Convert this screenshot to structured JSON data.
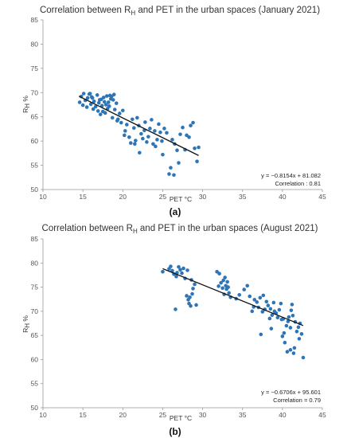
{
  "chart_data": [
    {
      "type": "scatter",
      "title_pre": "Correlation between R",
      "title_sub": "H",
      "title_post": " and PET in the urban spaces (January 2021)",
      "xlabel": "PET °C",
      "ylabel_main": "R",
      "ylabel_sub": "H",
      "ylabel_unit": " %",
      "xlim": [
        10,
        45
      ],
      "ylim": [
        50,
        85
      ],
      "xticks": [
        "10",
        "15",
        "20",
        "25",
        "30",
        "35",
        "40",
        "45"
      ],
      "yticks": [
        "50",
        "55",
        "60",
        "65",
        "70",
        "75",
        "80",
        "85"
      ],
      "equation": "y = −0.8154x + 81.082",
      "correlation": "Correlation : 0.81",
      "trend": {
        "slope": -0.8154,
        "intercept": 81.082,
        "x_range": [
          14.5,
          29.5
        ]
      },
      "panel_label": "(a)",
      "marker_color": "#2e75b6",
      "points": [
        [
          14.6,
          68.0
        ],
        [
          14.8,
          69.2
        ],
        [
          15.0,
          67.4
        ],
        [
          15.1,
          69.8
        ],
        [
          15.3,
          68.4
        ],
        [
          15.5,
          67.0
        ],
        [
          15.6,
          68.9
        ],
        [
          15.8,
          69.7
        ],
        [
          16.0,
          67.6
        ],
        [
          16.1,
          69.1
        ],
        [
          16.3,
          66.6
        ],
        [
          16.4,
          68.2
        ],
        [
          16.6,
          67.1
        ],
        [
          16.8,
          69.5
        ],
        [
          16.9,
          66.2
        ],
        [
          17.0,
          67.9
        ],
        [
          17.2,
          65.5
        ],
        [
          17.3,
          68.6
        ],
        [
          17.4,
          67.3
        ],
        [
          17.5,
          66.1
        ],
        [
          17.6,
          69.0
        ],
        [
          17.7,
          68.1
        ],
        [
          17.8,
          65.8
        ],
        [
          17.9,
          67.5
        ],
        [
          18.0,
          69.3
        ],
        [
          18.1,
          66.7
        ],
        [
          18.2,
          68.0
        ],
        [
          18.3,
          67.2
        ],
        [
          18.4,
          69.4
        ],
        [
          18.5,
          68.7
        ],
        [
          18.6,
          69.2
        ],
        [
          18.7,
          64.8
        ],
        [
          18.8,
          68.5
        ],
        [
          18.9,
          69.6
        ],
        [
          19.0,
          66.5
        ],
        [
          19.2,
          67.8
        ],
        [
          19.4,
          64.5
        ],
        [
          19.6,
          65.7
        ],
        [
          19.8,
          63.8
        ],
        [
          20.0,
          66.3
        ],
        [
          20.2,
          61.2
        ],
        [
          20.5,
          63.4
        ],
        [
          20.8,
          60.8
        ],
        [
          21.0,
          59.6
        ],
        [
          21.2,
          64.5
        ],
        [
          21.4,
          62.7
        ],
        [
          21.6,
          60.1
        ],
        [
          21.8,
          64.8
        ],
        [
          22.0,
          63.2
        ],
        [
          22.1,
          57.6
        ],
        [
          22.3,
          61.5
        ],
        [
          22.5,
          60.5
        ],
        [
          22.7,
          62.2
        ],
        [
          22.8,
          63.9
        ],
        [
          23.0,
          59.8
        ],
        [
          23.2,
          60.9
        ],
        [
          23.4,
          62.6
        ],
        [
          23.6,
          64.4
        ],
        [
          23.8,
          59.4
        ],
        [
          24.0,
          62.1
        ],
        [
          24.1,
          58.9
        ],
        [
          24.3,
          60.3
        ],
        [
          24.5,
          63.5
        ],
        [
          24.7,
          61.8
        ],
        [
          24.9,
          60.0
        ],
        [
          25.2,
          62.6
        ],
        [
          25.5,
          61.7
        ],
        [
          25.8,
          53.2
        ],
        [
          26.0,
          54.5
        ],
        [
          26.2,
          60.3
        ],
        [
          26.5,
          59.4
        ],
        [
          26.8,
          58.1
        ],
        [
          27.0,
          55.5
        ],
        [
          27.2,
          61.4
        ],
        [
          27.5,
          62.8
        ],
        [
          27.8,
          58.2
        ],
        [
          28.0,
          61.2
        ],
        [
          28.3,
          60.8
        ],
        [
          28.5,
          63.2
        ],
        [
          28.8,
          63.8
        ],
        [
          29.0,
          58.5
        ],
        [
          29.3,
          55.8
        ],
        [
          29.5,
          58.7
        ],
        [
          21.5,
          59.4
        ],
        [
          19.3,
          64.2
        ],
        [
          25.0,
          57.2
        ],
        [
          26.4,
          53.0
        ],
        [
          20.3,
          62.1
        ],
        [
          17.1,
          68.5
        ],
        [
          16.2,
          68.9
        ],
        [
          15.9,
          69.8
        ]
      ]
    },
    {
      "type": "scatter",
      "title_pre": "Correlation between R",
      "title_sub": "H",
      "title_post": " and PET in the urban spaces (August 2021)",
      "xlabel": "PET °C",
      "ylabel_main": "R",
      "ylabel_sub": "H",
      "ylabel_unit": " %",
      "xlim": [
        10,
        45
      ],
      "ylim": [
        50,
        85
      ],
      "xticks": [
        "10",
        "15",
        "20",
        "25",
        "30",
        "35",
        "40",
        "45"
      ],
      "yticks": [
        "50",
        "55",
        "60",
        "65",
        "70",
        "75",
        "80",
        "85"
      ],
      "equation": "y = −0.6706x + 95.601",
      "correlation": "Correlation = 0.79",
      "trend": {
        "slope": -0.6706,
        "intercept": 95.601,
        "x_range": [
          25.0,
          42.6
        ]
      },
      "panel_label": "(b)",
      "marker_color": "#2e75b6",
      "points": [
        [
          25.0,
          78.2
        ],
        [
          25.8,
          78.8
        ],
        [
          26.0,
          79.3
        ],
        [
          26.2,
          78.4
        ],
        [
          26.4,
          77.7
        ],
        [
          26.6,
          70.4
        ],
        [
          26.7,
          77.2
        ],
        [
          26.8,
          78.0
        ],
        [
          27.0,
          79.2
        ],
        [
          27.2,
          78.6
        ],
        [
          27.4,
          77.9
        ],
        [
          27.6,
          78.9
        ],
        [
          27.8,
          76.8
        ],
        [
          28.0,
          73.2
        ],
        [
          28.1,
          78.5
        ],
        [
          28.2,
          72.4
        ],
        [
          28.3,
          71.6
        ],
        [
          28.4,
          72.9
        ],
        [
          28.5,
          71.1
        ],
        [
          28.6,
          76.5
        ],
        [
          28.7,
          73.6
        ],
        [
          28.8,
          74.7
        ],
        [
          29.0,
          75.6
        ],
        [
          29.2,
          71.3
        ],
        [
          31.8,
          78.2
        ],
        [
          32.0,
          75.2
        ],
        [
          32.1,
          77.8
        ],
        [
          32.3,
          75.9
        ],
        [
          32.5,
          74.8
        ],
        [
          32.6,
          76.4
        ],
        [
          32.7,
          73.5
        ],
        [
          32.8,
          77.0
        ],
        [
          32.9,
          75.3
        ],
        [
          33.0,
          74.6
        ],
        [
          33.1,
          76.1
        ],
        [
          33.2,
          75.0
        ],
        [
          33.3,
          73.8
        ],
        [
          33.5,
          72.9
        ],
        [
          34.2,
          72.6
        ],
        [
          34.6,
          73.4
        ],
        [
          35.2,
          74.5
        ],
        [
          35.6,
          75.3
        ],
        [
          35.9,
          73.1
        ],
        [
          36.2,
          70.0
        ],
        [
          36.5,
          72.4
        ],
        [
          36.8,
          71.9
        ],
        [
          37.0,
          70.8
        ],
        [
          37.2,
          72.8
        ],
        [
          37.3,
          65.2
        ],
        [
          37.5,
          69.9
        ],
        [
          37.6,
          73.3
        ],
        [
          37.8,
          70.4
        ],
        [
          38.0,
          72.0
        ],
        [
          38.2,
          71.2
        ],
        [
          38.4,
          68.5
        ],
        [
          38.5,
          70.5
        ],
        [
          38.7,
          69.2
        ],
        [
          38.9,
          71.8
        ],
        [
          39.0,
          70.0
        ],
        [
          39.2,
          69.6
        ],
        [
          39.4,
          68.7
        ],
        [
          39.6,
          70.3
        ],
        [
          39.8,
          71.6
        ],
        [
          40.0,
          64.8
        ],
        [
          40.1,
          68.4
        ],
        [
          40.2,
          65.5
        ],
        [
          40.3,
          63.5
        ],
        [
          40.5,
          67.0
        ],
        [
          40.6,
          61.6
        ],
        [
          40.8,
          68.8
        ],
        [
          41.0,
          66.6
        ],
        [
          41.1,
          70.2
        ],
        [
          41.2,
          71.4
        ],
        [
          41.3,
          69.1
        ],
        [
          41.4,
          61.3
        ],
        [
          41.5,
          62.4
        ],
        [
          41.6,
          67.8
        ],
        [
          41.8,
          65.8
        ],
        [
          42.0,
          66.7
        ],
        [
          42.1,
          64.3
        ],
        [
          42.2,
          67.5
        ],
        [
          42.4,
          65.3
        ],
        [
          42.6,
          60.4
        ],
        [
          41.0,
          62.0
        ],
        [
          40.7,
          67.9
        ],
        [
          39.9,
          68.3
        ],
        [
          38.6,
          66.4
        ],
        [
          36.4,
          70.9
        ]
      ]
    }
  ]
}
